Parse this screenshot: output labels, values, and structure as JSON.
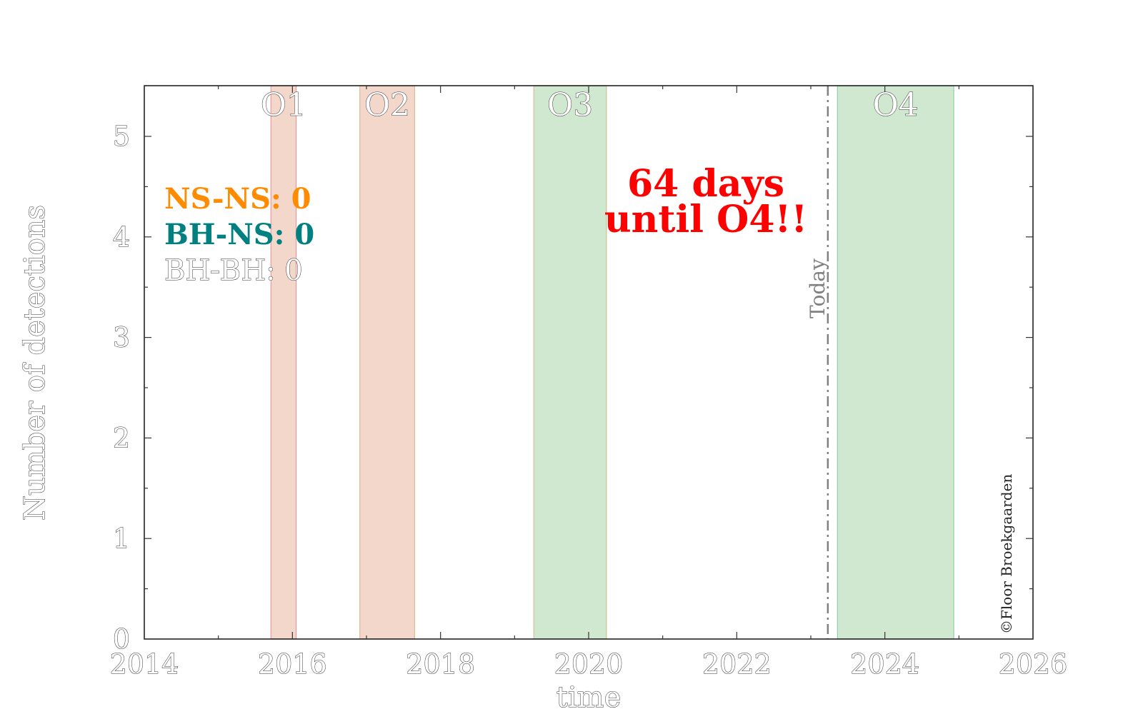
{
  "chart_data": {
    "type": "bar",
    "xlabel": "time",
    "ylabel": "Number of detections",
    "xlim": [
      2014,
      2026
    ],
    "ylim": [
      0,
      5.5
    ],
    "xticks": [
      "2014",
      "2016",
      "2018",
      "2020",
      "2022",
      "2024",
      "2026"
    ],
    "yticks": [
      "0",
      "1",
      "2",
      "3",
      "4",
      "5"
    ],
    "grid": false,
    "observing_runs": [
      {
        "label": "O1",
        "start": 2015.71,
        "end": 2016.05,
        "color": "#e8b79f",
        "edge": "#e89a9a"
      },
      {
        "label": "O2",
        "start": 2016.91,
        "end": 2017.65,
        "color": "#e8b79f",
        "edge": "#e8b98f"
      },
      {
        "label": "O3",
        "start": 2019.26,
        "end": 2020.24,
        "color": "#a8d5a8",
        "edge": "#d2c090"
      },
      {
        "label": "O4",
        "start": 2023.36,
        "end": 2024.93,
        "color": "#a8d5a8",
        "edge": "#8fcfa8"
      }
    ],
    "today": {
      "label": "Today",
      "x": 2023.23,
      "color": "#808080"
    },
    "counters": [
      {
        "text": "NS-NS: 0",
        "color": "#ff8c00"
      },
      {
        "text": "BH-NS: 0",
        "color": "#008080"
      },
      {
        "text": "BH-BH: 0",
        "color": "#ffffff"
      }
    ],
    "countdown": {
      "line1": "64 days",
      "line2": "until O4!!",
      "color": "#ff0000"
    },
    "credit": "©Floor Broekgaarden"
  }
}
